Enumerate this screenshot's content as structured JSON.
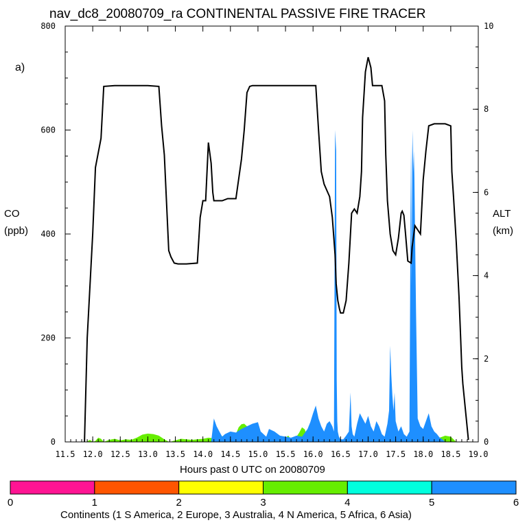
{
  "title": "nav_dc8_20080709_ra CONTINENTAL PASSIVE FIRE TRACER",
  "panel_label": "a)",
  "y_left": {
    "label": "CO",
    "unit": "(ppb)"
  },
  "y_right": {
    "label": "ALT",
    "unit": "(km)"
  },
  "x_label": "Hours past 0 UTC on 20080709",
  "colorbar": {
    "label": "Continents (1 S America, 2 Europe, 3 Australia, 4 N America, 5 Africa, 6 Asia)",
    "ticks": [
      "0",
      "1",
      "2",
      "3",
      "4",
      "5",
      "6"
    ],
    "colors": [
      "#ff1493",
      "#ff5500",
      "#ffff00",
      "#66ee00",
      "#00ffdd",
      "#1e8fff"
    ]
  },
  "chart_data": {
    "type": "area",
    "title": "nav_dc8_20080709_ra CONTINENTAL PASSIVE FIRE TRACER",
    "xlabel": "Hours past 0 UTC on 20080709",
    "ylabel": "CO (ppb)",
    "y2label": "ALT (km)",
    "xlim": [
      11.5,
      19.0
    ],
    "ylim": [
      0,
      800
    ],
    "y2lim": [
      0,
      10
    ],
    "x_ticks": [
      "11.5",
      "12.0",
      "12.5",
      "13.0",
      "13.5",
      "14.0",
      "14.5",
      "15.0",
      "15.5",
      "16.0",
      "16.5",
      "17.0",
      "17.5",
      "18.0",
      "18.5",
      "19.0"
    ],
    "y_ticks": [
      "0",
      "200",
      "400",
      "600",
      "800"
    ],
    "y2_ticks": [
      "0",
      "2",
      "4",
      "6",
      "8",
      "10"
    ],
    "series": [
      {
        "name": "ALT",
        "axis": "right",
        "color": "#000000",
        "x": [
          11.85,
          11.9,
          12.0,
          12.05,
          12.15,
          12.2,
          12.4,
          12.6,
          12.8,
          13.0,
          13.2,
          13.25,
          13.3,
          13.38,
          13.42,
          13.48,
          13.55,
          13.7,
          13.9,
          13.95,
          14.0,
          14.05,
          14.1,
          14.15,
          14.18,
          14.2,
          14.25,
          14.35,
          14.45,
          14.6,
          14.7,
          14.75,
          14.8,
          14.85,
          14.9,
          14.95,
          15.05,
          15.1,
          15.2,
          15.5,
          15.8,
          16.0,
          16.05,
          16.1,
          16.15,
          16.2,
          16.3,
          16.35,
          16.4,
          16.42,
          16.45,
          16.48,
          16.5,
          16.55,
          16.6,
          16.65,
          16.7,
          16.75,
          16.8,
          16.85,
          16.88,
          16.9,
          16.95,
          17.0,
          17.05,
          17.08,
          17.1,
          17.15,
          17.25,
          17.3,
          17.32,
          17.35,
          17.4,
          17.45,
          17.5,
          17.55,
          17.6,
          17.62,
          17.65,
          17.68,
          17.72,
          17.78,
          17.8,
          17.85,
          17.9,
          17.95,
          18.0,
          18.05,
          18.1,
          18.2,
          18.4,
          18.5,
          18.52,
          18.55,
          18.6,
          18.65,
          18.68,
          18.7,
          18.72,
          18.78,
          18.82
        ],
        "y": [
          0.0,
          2.5,
          5.0,
          6.6,
          7.3,
          8.55,
          8.57,
          8.57,
          8.57,
          8.57,
          8.55,
          7.6,
          6.9,
          4.6,
          4.45,
          4.3,
          4.28,
          4.28,
          4.3,
          5.4,
          5.8,
          5.8,
          7.2,
          6.7,
          6.0,
          5.8,
          5.8,
          5.8,
          5.85,
          5.85,
          6.8,
          7.5,
          8.4,
          8.55,
          8.57,
          8.57,
          8.57,
          8.57,
          8.57,
          8.57,
          8.57,
          8.57,
          8.57,
          7.5,
          6.5,
          6.2,
          5.9,
          5.4,
          4.5,
          3.8,
          3.4,
          3.2,
          3.1,
          3.1,
          3.4,
          4.3,
          5.5,
          5.6,
          5.5,
          5.9,
          6.5,
          7.8,
          8.9,
          9.25,
          9.0,
          8.57,
          8.57,
          8.57,
          8.57,
          8.2,
          6.9,
          5.8,
          5.0,
          4.6,
          4.5,
          4.9,
          5.5,
          5.55,
          5.45,
          5.0,
          4.35,
          4.3,
          4.7,
          5.2,
          5.1,
          5.0,
          6.3,
          7.0,
          7.6,
          7.65,
          7.65,
          7.6,
          6.5,
          5.9,
          4.8,
          3.5,
          2.5,
          1.8,
          1.4,
          0.6,
          0.05
        ]
      },
      {
        "name": "3 Australia",
        "axis": "left",
        "color": "#66ee00",
        "x": [
          11.88,
          11.95,
          12.0,
          12.05,
          12.1,
          12.15,
          12.2,
          12.3,
          12.4,
          12.5,
          12.6,
          12.7,
          12.8,
          12.9,
          13.0,
          13.1,
          13.2,
          13.3,
          13.35,
          13.4,
          13.5,
          13.6,
          13.7,
          13.8,
          13.9,
          14.0,
          14.1,
          14.2,
          14.3,
          14.4,
          14.5,
          14.6,
          14.65,
          14.7,
          14.75,
          14.8,
          14.85,
          14.9,
          14.95,
          15.0,
          15.1,
          15.2,
          15.3,
          15.4,
          15.5,
          15.55,
          15.6,
          15.65,
          15.7,
          15.75,
          15.8,
          15.85,
          15.9,
          16.0,
          16.1,
          16.2,
          16.3,
          16.4,
          16.5,
          16.6,
          16.7,
          16.8,
          16.9,
          17.0,
          17.2,
          17.4,
          17.6,
          17.8,
          18.0,
          18.1,
          18.2,
          18.3,
          18.4,
          18.5,
          18.6
        ],
        "y": [
          0,
          4,
          0,
          2,
          8,
          6,
          0,
          4,
          6,
          3,
          5,
          4,
          8,
          14,
          16,
          15,
          12,
          5,
          2,
          0,
          3,
          6,
          5,
          4,
          5,
          6,
          8,
          7,
          12,
          10,
          14,
          15,
          28,
          34,
          35,
          30,
          22,
          12,
          8,
          4,
          6,
          5,
          4,
          3,
          8,
          12,
          5,
          4,
          10,
          18,
          28,
          24,
          8,
          6,
          8,
          5,
          4,
          3,
          0,
          2,
          3,
          2,
          2,
          3,
          2,
          2,
          3,
          2,
          3,
          5,
          6,
          8,
          12,
          10,
          0
        ]
      },
      {
        "name": "6 Asia",
        "axis": "left",
        "color": "#1e8fff",
        "x": [
          14.15,
          14.2,
          14.25,
          14.3,
          14.35,
          14.4,
          14.5,
          14.6,
          14.7,
          14.8,
          14.9,
          15.0,
          15.05,
          15.1,
          15.15,
          15.2,
          15.3,
          15.4,
          15.5,
          15.6,
          15.7,
          15.8,
          15.9,
          15.95,
          16.0,
          16.05,
          16.1,
          16.15,
          16.2,
          16.25,
          16.3,
          16.35,
          16.38,
          16.4,
          16.42,
          16.43,
          16.44,
          16.45,
          16.47,
          16.5,
          16.55,
          16.6,
          16.65,
          16.68,
          16.7,
          16.72,
          16.75,
          16.8,
          16.85,
          16.9,
          16.95,
          17.0,
          17.05,
          17.1,
          17.15,
          17.2,
          17.25,
          17.3,
          17.35,
          17.38,
          17.4,
          17.42,
          17.44,
          17.46,
          17.48,
          17.5,
          17.55,
          17.6,
          17.65,
          17.7,
          17.75,
          17.77,
          17.78,
          17.79,
          17.8,
          17.81,
          17.82,
          17.83,
          17.84,
          17.85,
          17.87,
          17.9,
          17.95,
          18.0,
          18.05,
          18.1,
          18.15,
          18.2,
          18.25,
          18.3,
          18.35,
          18.4
        ],
        "y": [
          0,
          45,
          30,
          20,
          10,
          15,
          20,
          18,
          25,
          30,
          35,
          38,
          20,
          15,
          10,
          25,
          20,
          12,
          10,
          8,
          12,
          10,
          25,
          38,
          55,
          70,
          45,
          30,
          20,
          35,
          40,
          30,
          20,
          600,
          560,
          120,
          40,
          20,
          10,
          5,
          5,
          12,
          20,
          95,
          30,
          15,
          10,
          35,
          55,
          45,
          35,
          50,
          30,
          20,
          40,
          30,
          15,
          10,
          35,
          60,
          185,
          130,
          90,
          60,
          95,
          40,
          20,
          30,
          15,
          10,
          20,
          440,
          580,
          300,
          535,
          600,
          520,
          560,
          510,
          420,
          250,
          45,
          30,
          25,
          40,
          55,
          30,
          20,
          15,
          8,
          5,
          0
        ]
      }
    ]
  }
}
